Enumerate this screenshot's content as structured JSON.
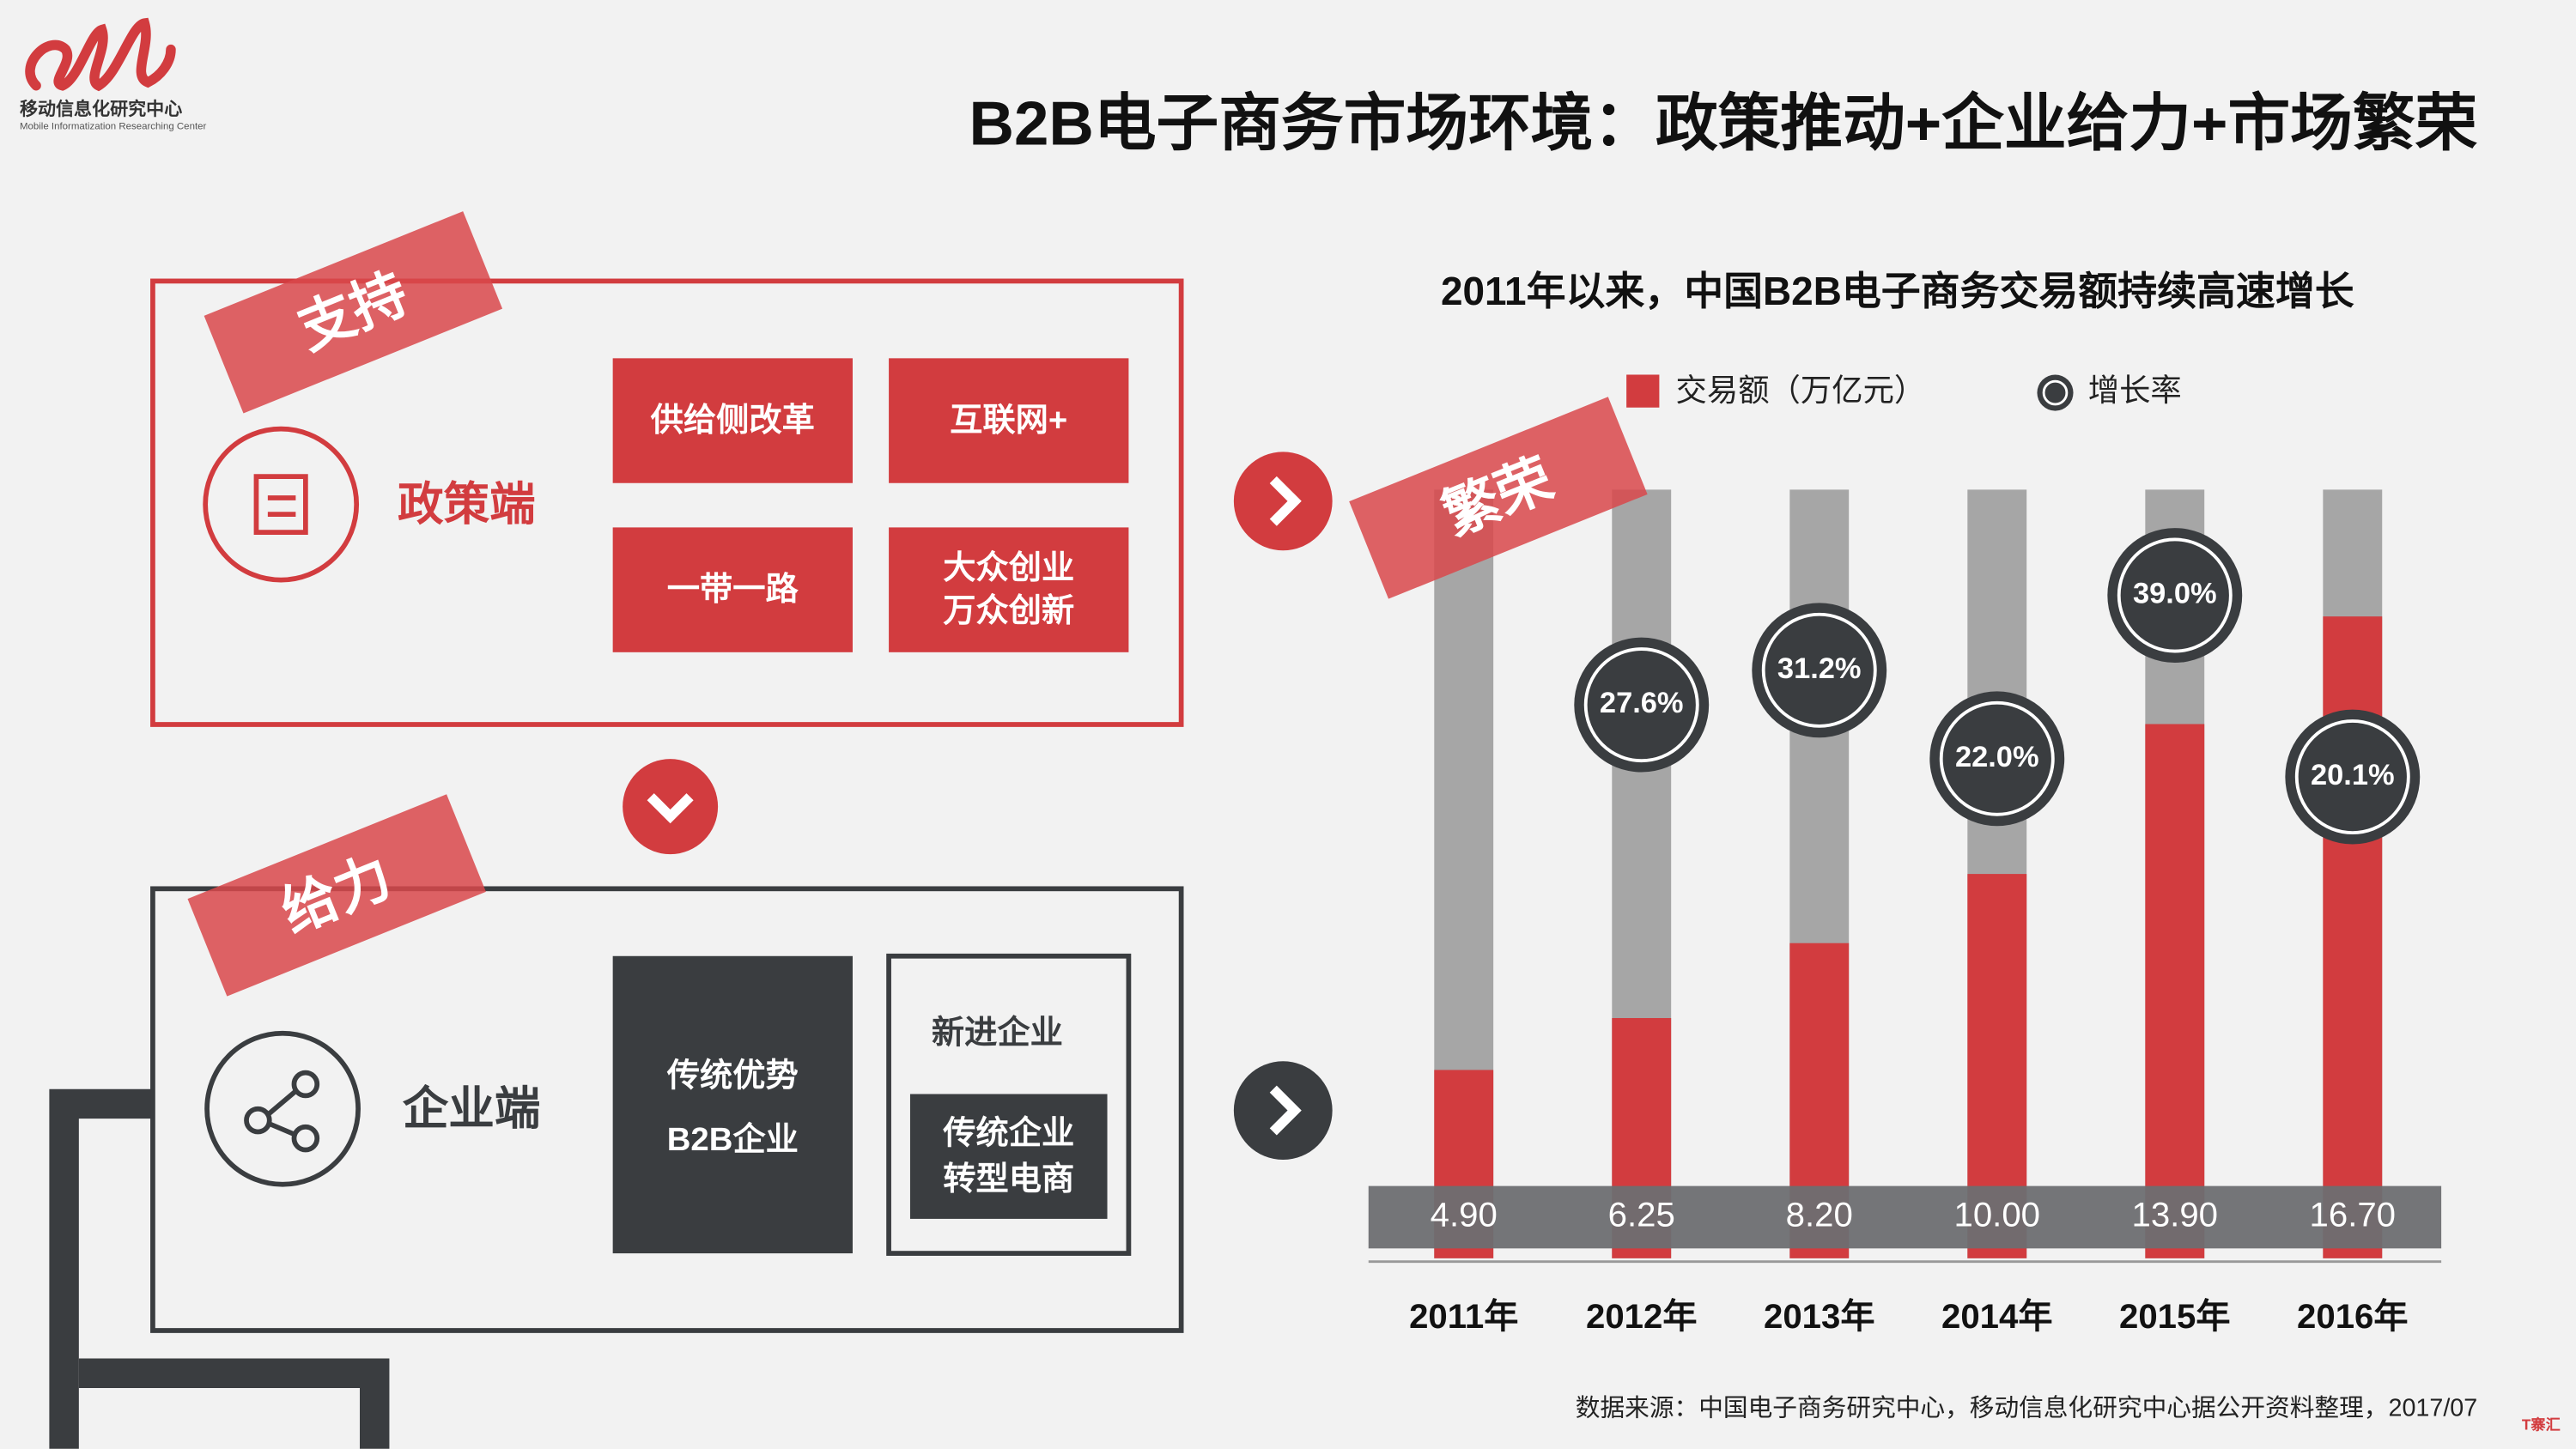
{
  "logo": {
    "name": "移动信息化研究中心",
    "english": "Mobile Informatization Researching Center"
  },
  "title": "B2B电子商务市场环境：政策推动+企业给力+市场繁荣",
  "policy": {
    "ribbon": "支持",
    "label": "政策端",
    "items": [
      "供给侧改革",
      "互联网+",
      "一带一路"
    ],
    "item4": [
      "大众创业",
      "万众创新"
    ]
  },
  "enterprise": {
    "ribbon": "给力",
    "label": "企业端",
    "traditional": [
      "传统优势",
      "B2B企业"
    ],
    "new": "新进企业",
    "transform": [
      "传统企业",
      "转型电商"
    ]
  },
  "market": {
    "ribbon": "繁荣"
  },
  "chart_data": {
    "type": "bar",
    "title": "2011年以来，中国B2B电子商务交易额持续高速增长",
    "categories": [
      "2011年",
      "2012年",
      "2013年",
      "2014年",
      "2015年",
      "2016年"
    ],
    "ylim": [
      0,
      20
    ],
    "y2lim": [
      -30,
      50
    ],
    "series": [
      {
        "name": "交易额（万亿元）",
        "color": "#d23c3f",
        "values": [
          4.9,
          6.25,
          8.2,
          10.0,
          13.9,
          16.7
        ],
        "value_labels": [
          "4.90",
          "6.25",
          "8.20",
          "10.00",
          "13.90",
          "16.70"
        ]
      },
      {
        "name": "增长率",
        "color": "#3a3d40",
        "axis": "y2",
        "values": [
          null,
          27.6,
          31.2,
          22.0,
          39.0,
          20.1
        ],
        "value_labels": [
          null,
          "27.6%",
          "31.2%",
          "22.0%",
          "39.0%",
          "20.1%"
        ]
      }
    ]
  },
  "source": "数据来源：中国电子商务研究中心，移动信息化研究中心据公开资料整理，2017/07",
  "footer_logo": "T寨汇"
}
